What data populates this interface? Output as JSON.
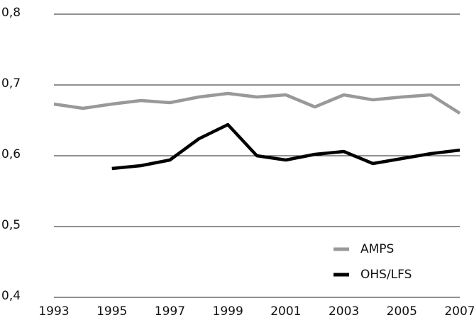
{
  "chart_data": {
    "type": "line",
    "x": [
      1993,
      1994,
      1995,
      1996,
      1997,
      1998,
      1999,
      2000,
      2001,
      2002,
      2003,
      2004,
      2005,
      2006,
      2007
    ],
    "series": [
      {
        "name": "AMPS",
        "color": "#999999",
        "values": [
          0.673,
          0.667,
          0.673,
          0.678,
          0.675,
          0.683,
          0.688,
          0.683,
          0.686,
          0.669,
          0.686,
          0.679,
          0.683,
          0.686,
          0.66
        ]
      },
      {
        "name": "OHS/LFS",
        "color": "#000000",
        "values": [
          null,
          null,
          0.582,
          0.586,
          0.594,
          0.624,
          0.644,
          0.6,
          0.594,
          0.602,
          0.606,
          0.589,
          0.596,
          0.603,
          0.608
        ]
      }
    ],
    "xlim": [
      1993,
      2007
    ],
    "xticks": [
      1993,
      1995,
      1997,
      1999,
      2001,
      2003,
      2005,
      2007
    ],
    "ylim": [
      0.4,
      0.8
    ],
    "yticks": [
      {
        "value": 0.4,
        "label": "0,4"
      },
      {
        "value": 0.5,
        "label": "0,5"
      },
      {
        "value": 0.6,
        "label": "0,6"
      },
      {
        "value": 0.7,
        "label": "0,7"
      },
      {
        "value": 0.8,
        "label": "0,8"
      }
    ],
    "grid": true,
    "legend": "lower right"
  }
}
